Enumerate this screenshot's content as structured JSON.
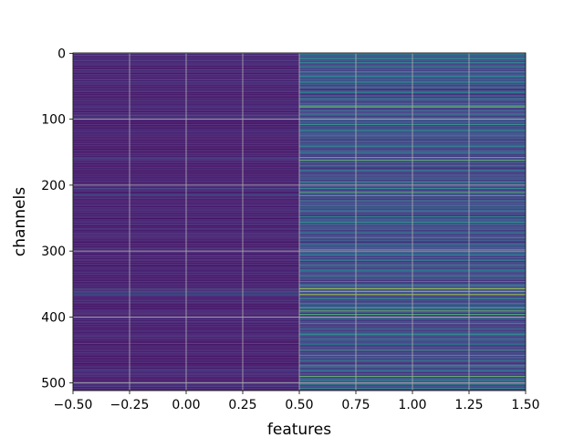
{
  "chart_data": {
    "type": "heatmap",
    "title": "",
    "xlabel": "features",
    "ylabel": "channels",
    "x": [
      0,
      1
    ],
    "xlim": [
      -0.5,
      1.5
    ],
    "ylim": [
      511.5,
      -0.5
    ],
    "x_ticks": [
      "−0.50",
      "−0.25",
      "0.00",
      "0.25",
      "0.50",
      "0.75",
      "1.00",
      "1.25",
      "1.50"
    ],
    "x_tick_values": [
      -0.5,
      -0.25,
      0.0,
      0.25,
      0.5,
      0.75,
      1.0,
      1.25,
      1.5
    ],
    "y_ticks": [
      "0",
      "100",
      "200",
      "300",
      "400",
      "500"
    ],
    "y_tick_values": [
      0,
      100,
      200,
      300,
      400,
      500
    ],
    "grid": true,
    "colormap": "viridis",
    "n_rows": 512,
    "value_range": [
      0,
      1
    ],
    "columns": [
      {
        "x": 0,
        "description": "mostly low values",
        "base_value": 0.05,
        "highlights": [
          {
            "row": 3,
            "value": 0.2
          },
          {
            "row": 12,
            "value": 0.18
          },
          {
            "row": 25,
            "value": 0.22
          },
          {
            "row": 40,
            "value": 0.2
          },
          {
            "row": 95,
            "value": 0.3
          },
          {
            "row": 100,
            "value": 0.25
          },
          {
            "row": 160,
            "value": 0.22
          },
          {
            "row": 205,
            "value": 0.2
          },
          {
            "row": 215,
            "value": 0.28
          },
          {
            "row": 280,
            "value": 0.2
          },
          {
            "row": 300,
            "value": 0.22
          },
          {
            "row": 358,
            "value": 0.42
          },
          {
            "row": 362,
            "value": 0.4
          },
          {
            "row": 366,
            "value": 0.35
          },
          {
            "row": 395,
            "value": 0.3
          },
          {
            "row": 440,
            "value": 0.22
          },
          {
            "row": 480,
            "value": 0.24
          },
          {
            "row": 505,
            "value": 0.2
          }
        ]
      },
      {
        "x": 1,
        "description": "higher, more variable values",
        "base_value": 0.12,
        "highlights": [
          {
            "row": 2,
            "value": 0.5
          },
          {
            "row": 8,
            "value": 0.6
          },
          {
            "row": 14,
            "value": 0.45
          },
          {
            "row": 20,
            "value": 0.55
          },
          {
            "row": 28,
            "value": 0.5
          },
          {
            "row": 35,
            "value": 0.48
          },
          {
            "row": 44,
            "value": 0.52
          },
          {
            "row": 52,
            "value": 0.45
          },
          {
            "row": 60,
            "value": 0.5
          },
          {
            "row": 70,
            "value": 0.55
          },
          {
            "row": 80,
            "value": 0.75
          },
          {
            "row": 82,
            "value": 0.7
          },
          {
            "row": 92,
            "value": 0.55
          },
          {
            "row": 100,
            "value": 0.5
          },
          {
            "row": 108,
            "value": 0.55
          },
          {
            "row": 117,
            "value": 0.6
          },
          {
            "row": 125,
            "value": 0.5
          },
          {
            "row": 134,
            "value": 0.45
          },
          {
            "row": 142,
            "value": 0.55
          },
          {
            "row": 150,
            "value": 0.5
          },
          {
            "row": 158,
            "value": 0.7
          },
          {
            "row": 162,
            "value": 0.75
          },
          {
            "row": 170,
            "value": 0.55
          },
          {
            "row": 178,
            "value": 0.5
          },
          {
            "row": 186,
            "value": 0.45
          },
          {
            "row": 195,
            "value": 0.55
          },
          {
            "row": 200,
            "value": 0.8
          },
          {
            "row": 205,
            "value": 0.5
          },
          {
            "row": 211,
            "value": 0.75
          },
          {
            "row": 216,
            "value": 0.65
          },
          {
            "row": 224,
            "value": 0.5
          },
          {
            "row": 232,
            "value": 0.45
          },
          {
            "row": 240,
            "value": 0.55
          },
          {
            "row": 248,
            "value": 0.5
          },
          {
            "row": 256,
            "value": 0.6
          },
          {
            "row": 264,
            "value": 0.45
          },
          {
            "row": 272,
            "value": 0.5
          },
          {
            "row": 280,
            "value": 0.55
          },
          {
            "row": 289,
            "value": 0.5
          },
          {
            "row": 298,
            "value": 0.7
          },
          {
            "row": 306,
            "value": 0.5
          },
          {
            "row": 314,
            "value": 0.45
          },
          {
            "row": 322,
            "value": 0.55
          },
          {
            "row": 330,
            "value": 0.5
          },
          {
            "row": 338,
            "value": 0.45
          },
          {
            "row": 346,
            "value": 0.5
          },
          {
            "row": 352,
            "value": 0.55
          },
          {
            "row": 357,
            "value": 0.9
          },
          {
            "row": 361,
            "value": 0.85
          },
          {
            "row": 366,
            "value": 0.95
          },
          {
            "row": 372,
            "value": 0.55
          },
          {
            "row": 380,
            "value": 0.5
          },
          {
            "row": 386,
            "value": 0.65
          },
          {
            "row": 391,
            "value": 0.8
          },
          {
            "row": 396,
            "value": 0.7
          },
          {
            "row": 402,
            "value": 0.55
          },
          {
            "row": 410,
            "value": 0.5
          },
          {
            "row": 418,
            "value": 0.45
          },
          {
            "row": 426,
            "value": 0.55
          },
          {
            "row": 434,
            "value": 0.5
          },
          {
            "row": 442,
            "value": 0.45
          },
          {
            "row": 450,
            "value": 0.6
          },
          {
            "row": 458,
            "value": 0.55
          },
          {
            "row": 466,
            "value": 0.5
          },
          {
            "row": 474,
            "value": 0.65
          },
          {
            "row": 482,
            "value": 0.5
          },
          {
            "row": 490,
            "value": 0.75
          },
          {
            "row": 496,
            "value": 0.55
          },
          {
            "row": 502,
            "value": 0.6
          },
          {
            "row": 508,
            "value": 0.5
          }
        ]
      }
    ]
  }
}
